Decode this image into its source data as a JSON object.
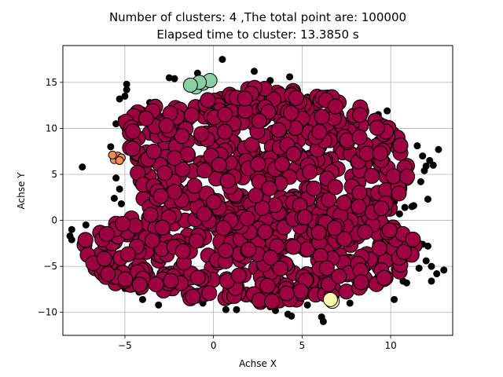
{
  "chart_data": {
    "type": "scatter",
    "title_line1": "Number of clusters: 4 ,The total point are: 100000",
    "title_line2": "Elapsed time to cluster:  13.3850 s",
    "xlabel": "Achse X",
    "ylabel": "Achse Y",
    "xlim": [
      -8.5,
      13.5
    ],
    "ylim": [
      -12.5,
      19
    ],
    "xticks": [
      -5,
      0,
      5,
      10
    ],
    "yticks": [
      -10,
      -5,
      0,
      5,
      10,
      15
    ],
    "grid": true,
    "colors": {
      "main_cluster": "#9e0142",
      "green_cluster": "#88cfa4",
      "orange_cluster": "#f88d52",
      "yellow_cluster": "#fbf8b0",
      "noise": "#000000",
      "edge": "#000000",
      "grid": "#b0b0b0"
    },
    "main_cluster_extent": {
      "x_range": [
        -7.5,
        11.5
      ],
      "y_range": [
        -9,
        14.5
      ]
    },
    "clusters": [
      {
        "color_key": "green_cluster",
        "points": [
          [
            -1.0,
            14.5
          ],
          [
            -0.6,
            14.9
          ],
          [
            -0.2,
            15.2
          ],
          [
            -0.8,
            15.0
          ],
          [
            -1.3,
            14.7
          ]
        ]
      },
      {
        "color_key": "orange_cluster",
        "points": [
          [
            -5.6,
            6.6
          ],
          [
            -5.4,
            7.0
          ],
          [
            -5.2,
            6.8
          ],
          [
            -5.7,
            7.1
          ],
          [
            -5.3,
            6.5
          ]
        ]
      },
      {
        "color_key": "yellow_cluster",
        "points": [
          [
            6.7,
            -8.8
          ],
          [
            6.6,
            -8.6
          ]
        ]
      }
    ],
    "noise_points": [
      [
        0.5,
        17.5
      ],
      [
        2.3,
        16.2
      ],
      [
        -4.9,
        14.8
      ],
      [
        -4.9,
        14.2
      ],
      [
        -5.0,
        13.5
      ],
      [
        -5.3,
        13.2
      ],
      [
        -2.5,
        15.5
      ],
      [
        -2.2,
        15.4
      ],
      [
        -0.9,
        16.0
      ],
      [
        3.2,
        15.2
      ],
      [
        4.3,
        15.6
      ],
      [
        -3.6,
        12.8
      ],
      [
        -5.2,
        11.0
      ],
      [
        -5.5,
        10.5
      ],
      [
        -5.8,
        8.0
      ],
      [
        -7.4,
        5.8
      ],
      [
        -5.5,
        4.6
      ],
      [
        -5.3,
        3.4
      ],
      [
        -5.6,
        2.4
      ],
      [
        -5.2,
        1.8
      ],
      [
        -7.2,
        -0.5
      ],
      [
        -8.0,
        -1.0
      ],
      [
        -8.1,
        -1.7
      ],
      [
        -8.0,
        -2.1
      ],
      [
        -5.2,
        -6.2
      ],
      [
        -5.2,
        -7.0
      ],
      [
        -4.8,
        -6.0
      ],
      [
        -5.0,
        -7.4
      ],
      [
        -4.2,
        -7.8
      ],
      [
        -4.0,
        -8.6
      ],
      [
        -3.2,
        -7.4
      ],
      [
        -3.1,
        -9.2
      ],
      [
        -1.5,
        -8.2
      ],
      [
        -0.6,
        -9.0
      ],
      [
        0.5,
        -8.7
      ],
      [
        0.7,
        -9.7
      ],
      [
        1.3,
        -9.7
      ],
      [
        3.2,
        -9.4
      ],
      [
        3.5,
        -9.8
      ],
      [
        4.2,
        -10.2
      ],
      [
        4.4,
        -10.4
      ],
      [
        5.3,
        -9.2
      ],
      [
        6.1,
        -10.5
      ],
      [
        6.2,
        -11.0
      ],
      [
        7.7,
        -9.0
      ],
      [
        8.1,
        -7.2
      ],
      [
        8.5,
        -7.4
      ],
      [
        8.8,
        -6.9
      ],
      [
        9.2,
        -6.3
      ],
      [
        9.8,
        -6.0
      ],
      [
        10.2,
        -8.6
      ],
      [
        10.7,
        -6.6
      ],
      [
        10.9,
        -6.8
      ],
      [
        11.6,
        -5.2
      ],
      [
        12.0,
        -4.4
      ],
      [
        12.3,
        -5.0
      ],
      [
        12.3,
        -6.6
      ],
      [
        12.6,
        -5.8
      ],
      [
        13.0,
        -5.4
      ],
      [
        11.8,
        -2.6
      ],
      [
        12.1,
        -2.8
      ],
      [
        10.5,
        0.7
      ],
      [
        10.8,
        1.4
      ],
      [
        11.2,
        1.5
      ],
      [
        11.3,
        1.6
      ],
      [
        10.2,
        1.4
      ],
      [
        10.2,
        2.0
      ],
      [
        12.1,
        2.3
      ],
      [
        11.7,
        4.2
      ],
      [
        11.9,
        5.4
      ],
      [
        12.0,
        5.9
      ],
      [
        12.2,
        6.5
      ],
      [
        12.4,
        6.0
      ],
      [
        12.7,
        7.7
      ],
      [
        11.8,
        7.0
      ],
      [
        11.5,
        8.1
      ],
      [
        10.5,
        8.8
      ],
      [
        10.3,
        9.6
      ],
      [
        10.1,
        10.3
      ],
      [
        9.5,
        10.8
      ],
      [
        9.8,
        11.9
      ],
      [
        9.3,
        11.5
      ],
      [
        8.9,
        10.8
      ],
      [
        6.3,
        13.0
      ],
      [
        5.3,
        13.4
      ],
      [
        4.7,
        14.0
      ],
      [
        5.7,
        12.2
      ],
      [
        3.8,
        14.2
      ],
      [
        -3.5,
        12.5
      ],
      [
        -4.0,
        12.0
      ]
    ]
  }
}
